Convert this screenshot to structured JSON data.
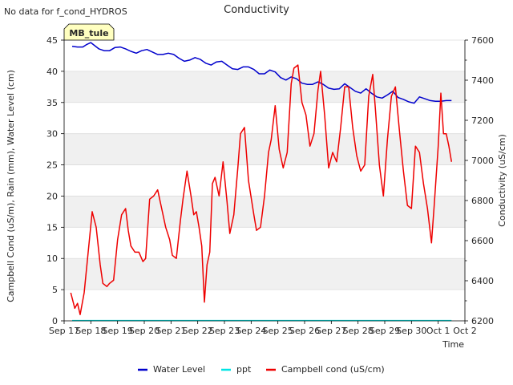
{
  "top_note": "No data for f_cond_HYDROS",
  "site_tag": "MB_tule",
  "colors": {
    "band": "#f0f0f0",
    "grid": "#dcdcdc",
    "tag_fill": "#ffffc0",
    "tag_text": "#8b0000"
  },
  "chart_data": {
    "type": "line",
    "title": "Conductivity",
    "xlabel": "Time",
    "ylabel_left": "Campbell Cond (uS/m), Rain (mm), Water Level (cm)",
    "ylabel_right": "Conductivity (uS/cm)",
    "x_range": [
      "Sep 17",
      "Oct 2"
    ],
    "xlim": [
      0,
      15
    ],
    "x_ticks": [
      "Sep 17",
      "Sep 18",
      "Sep 19",
      "Sep 20",
      "Sep 21",
      "Sep 22",
      "Sep 23",
      "Sep 24",
      "Sep 25",
      "Sep 26",
      "Sep 27",
      "Sep 28",
      "Sep 29",
      "Sep 30",
      "Oct 1",
      "Oct 2"
    ],
    "ylim_left": [
      0,
      45
    ],
    "y_ticks_left": [
      0,
      5,
      10,
      15,
      20,
      25,
      30,
      35,
      40,
      45
    ],
    "ylim_right": [
      6200,
      7600
    ],
    "y_ticks_right": [
      6200,
      6400,
      6600,
      6800,
      7000,
      7200,
      7400,
      7600
    ],
    "grid": true,
    "legend_position": "bottom-center",
    "series": [
      {
        "name": "Water Level",
        "axis": "left",
        "color": "#0000cc",
        "x": [
          0.3,
          0.5,
          0.7,
          0.85,
          1.0,
          1.15,
          1.3,
          1.5,
          1.7,
          1.9,
          2.1,
          2.3,
          2.5,
          2.7,
          2.9,
          3.1,
          3.3,
          3.5,
          3.7,
          3.9,
          4.1,
          4.3,
          4.5,
          4.7,
          4.9,
          5.1,
          5.3,
          5.5,
          5.7,
          5.9,
          6.1,
          6.3,
          6.5,
          6.7,
          6.9,
          7.1,
          7.3,
          7.5,
          7.7,
          7.9,
          8.1,
          8.3,
          8.5,
          8.7,
          8.9,
          9.1,
          9.3,
          9.5,
          9.7,
          9.9,
          10.1,
          10.3,
          10.5,
          10.7,
          10.9,
          11.1,
          11.3,
          11.5,
          11.7,
          11.9,
          12.1,
          12.3,
          12.5,
          12.7,
          12.9,
          13.1,
          13.3,
          13.5,
          13.7,
          13.9,
          14.1,
          14.3,
          14.5
        ],
        "values": [
          44.0,
          43.9,
          43.9,
          44.3,
          44.6,
          44.1,
          43.6,
          43.3,
          43.3,
          43.8,
          43.9,
          43.6,
          43.2,
          42.9,
          43.3,
          43.5,
          43.1,
          42.7,
          42.7,
          42.9,
          42.7,
          42.1,
          41.6,
          41.8,
          42.2,
          41.9,
          41.3,
          41.0,
          41.5,
          41.6,
          41.0,
          40.4,
          40.3,
          40.7,
          40.7,
          40.3,
          39.6,
          39.6,
          40.2,
          39.9,
          39.0,
          38.6,
          39.1,
          38.8,
          38.1,
          37.9,
          37.9,
          38.3,
          37.9,
          37.3,
          37.1,
          37.2,
          38.0,
          37.4,
          36.8,
          36.5,
          37.2,
          36.5,
          35.9,
          35.7,
          36.2,
          36.8,
          35.8,
          35.5,
          35.1,
          34.9,
          35.9,
          35.6,
          35.3,
          35.2,
          35.2,
          35.3,
          35.3
        ]
      },
      {
        "name": "ppt",
        "axis": "left",
        "color": "#00e5e5",
        "x": [
          0.3,
          14.5
        ],
        "values": [
          0.05,
          0.05
        ]
      },
      {
        "name": "Campbell cond (uS/cm)",
        "axis": "left",
        "color": "#ee0000",
        "x": [
          0.25,
          0.4,
          0.5,
          0.6,
          0.75,
          0.9,
          1.05,
          1.2,
          1.35,
          1.45,
          1.6,
          1.7,
          1.85,
          2.0,
          2.15,
          2.3,
          2.4,
          2.5,
          2.65,
          2.8,
          2.95,
          3.05,
          3.2,
          3.35,
          3.5,
          3.65,
          3.8,
          3.95,
          4.05,
          4.2,
          4.35,
          4.45,
          4.6,
          4.75,
          4.85,
          4.95,
          5.05,
          5.15,
          5.25,
          5.35,
          5.45,
          5.55,
          5.65,
          5.8,
          5.95,
          6.1,
          6.2,
          6.35,
          6.5,
          6.6,
          6.75,
          6.9,
          7.1,
          7.2,
          7.35,
          7.5,
          7.65,
          7.75,
          7.9,
          8.05,
          8.2,
          8.35,
          8.5,
          8.6,
          8.75,
          8.9,
          9.05,
          9.2,
          9.35,
          9.5,
          9.6,
          9.75,
          9.9,
          10.05,
          10.2,
          10.35,
          10.5,
          10.65,
          10.8,
          10.95,
          11.1,
          11.25,
          11.4,
          11.55,
          11.65,
          11.8,
          11.95,
          12.1,
          12.25,
          12.4,
          12.55,
          12.7,
          12.85,
          13.0,
          13.15,
          13.3,
          13.45,
          13.6,
          13.75,
          13.85,
          14.0,
          14.1,
          14.2,
          14.3,
          14.4,
          14.5
        ],
        "values": [
          4.5,
          2.0,
          2.8,
          1.0,
          4.5,
          11.0,
          17.5,
          15.0,
          9.0,
          6.0,
          5.5,
          6.0,
          6.5,
          13.0,
          17.0,
          18.0,
          14.5,
          12.0,
          11.0,
          11.0,
          9.5,
          10.0,
          19.5,
          20.0,
          21.0,
          18.0,
          15.0,
          13.0,
          10.5,
          10.0,
          16.0,
          19.5,
          24.0,
          20.0,
          17.0,
          17.5,
          15.0,
          12.0,
          3.0,
          9.0,
          11.0,
          22.0,
          23.0,
          20.0,
          25.5,
          19.0,
          14.0,
          17.0,
          24.5,
          30.0,
          31.0,
          22.5,
          17.0,
          14.5,
          15.0,
          20.0,
          27.0,
          29.0,
          34.5,
          27.5,
          24.5,
          27.0,
          38.0,
          40.5,
          41.0,
          35.0,
          33.0,
          28.0,
          30.0,
          37.0,
          40.0,
          33.0,
          24.5,
          27.0,
          25.5,
          31.0,
          37.5,
          37.5,
          31.0,
          26.5,
          24.0,
          25.0,
          36.0,
          39.5,
          34.0,
          25.0,
          20.0,
          29.0,
          36.0,
          37.5,
          30.5,
          24.0,
          18.5,
          18.0,
          28.0,
          27.0,
          22.0,
          18.0,
          12.5,
          18.5,
          28.0,
          36.5,
          30.0,
          30.0,
          28.0,
          25.5
        ]
      }
    ]
  }
}
